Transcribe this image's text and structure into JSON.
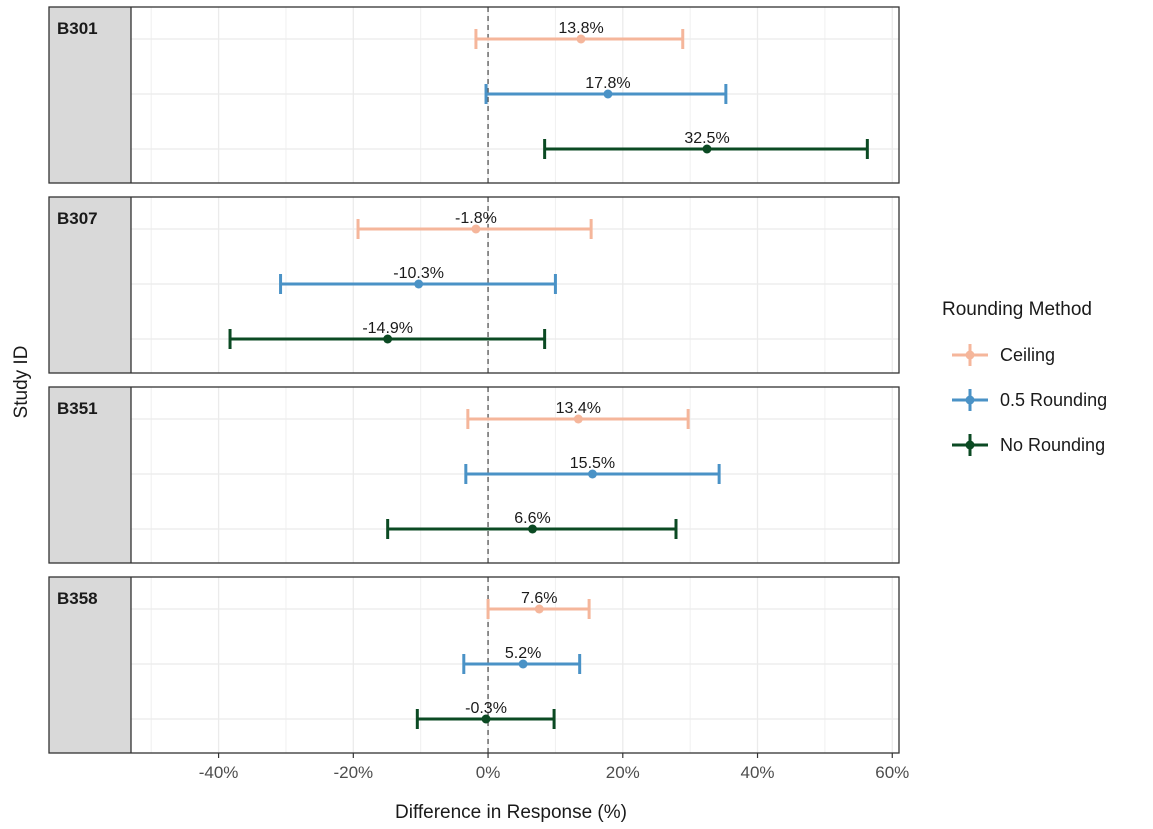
{
  "chart_data": {
    "type": "forest",
    "xlabel": "Difference in Response (%)",
    "ylabel": "Study ID",
    "xlim": [
      -53,
      61
    ],
    "x_ticks": [
      -40,
      -20,
      0,
      20,
      40,
      60
    ],
    "x_tick_labels": [
      "-40%",
      "-20%",
      "0%",
      "20%",
      "40%",
      "60%"
    ],
    "reference_line": 0,
    "grid": true,
    "legend": {
      "title": "Rounding Method",
      "position": "right",
      "entries": [
        {
          "name": "Ceiling",
          "color": "#f5b69b"
        },
        {
          "name": "0.5 Rounding",
          "color": "#4a92c6"
        },
        {
          "name": "No Rounding",
          "color": "#0b4a23"
        }
      ]
    },
    "panels": [
      {
        "study": "B301",
        "rows": [
          {
            "method": "Ceiling",
            "estimate": 13.8,
            "lower": -1.8,
            "upper": 28.9,
            "label": "13.8%"
          },
          {
            "method": "0.5 Rounding",
            "estimate": 17.8,
            "lower": -0.3,
            "upper": 35.3,
            "label": "17.8%"
          },
          {
            "method": "No Rounding",
            "estimate": 32.5,
            "lower": 8.4,
            "upper": 56.3,
            "label": "32.5%"
          }
        ]
      },
      {
        "study": "B307",
        "rows": [
          {
            "method": "Ceiling",
            "estimate": -1.8,
            "lower": -19.3,
            "upper": 15.3,
            "label": "-1.8%"
          },
          {
            "method": "0.5 Rounding",
            "estimate": -10.3,
            "lower": -30.8,
            "upper": 10.0,
            "label": "-10.3%"
          },
          {
            "method": "No Rounding",
            "estimate": -14.9,
            "lower": -38.3,
            "upper": 8.4,
            "label": "-14.9%"
          }
        ]
      },
      {
        "study": "B351",
        "rows": [
          {
            "method": "Ceiling",
            "estimate": 13.4,
            "lower": -3.0,
            "upper": 29.7,
            "label": "13.4%"
          },
          {
            "method": "0.5 Rounding",
            "estimate": 15.5,
            "lower": -3.3,
            "upper": 34.3,
            "label": "15.5%"
          },
          {
            "method": "No Rounding",
            "estimate": 6.6,
            "lower": -14.9,
            "upper": 27.9,
            "label": "6.6%"
          }
        ]
      },
      {
        "study": "B358",
        "rows": [
          {
            "method": "Ceiling",
            "estimate": 7.6,
            "lower": 0.0,
            "upper": 15.0,
            "label": "7.6%"
          },
          {
            "method": "0.5 Rounding",
            "estimate": 5.2,
            "lower": -3.6,
            "upper": 13.6,
            "label": "5.2%"
          },
          {
            "method": "No Rounding",
            "estimate": -0.3,
            "lower": -10.5,
            "upper": 9.8,
            "label": "-0.3%"
          }
        ]
      }
    ]
  }
}
